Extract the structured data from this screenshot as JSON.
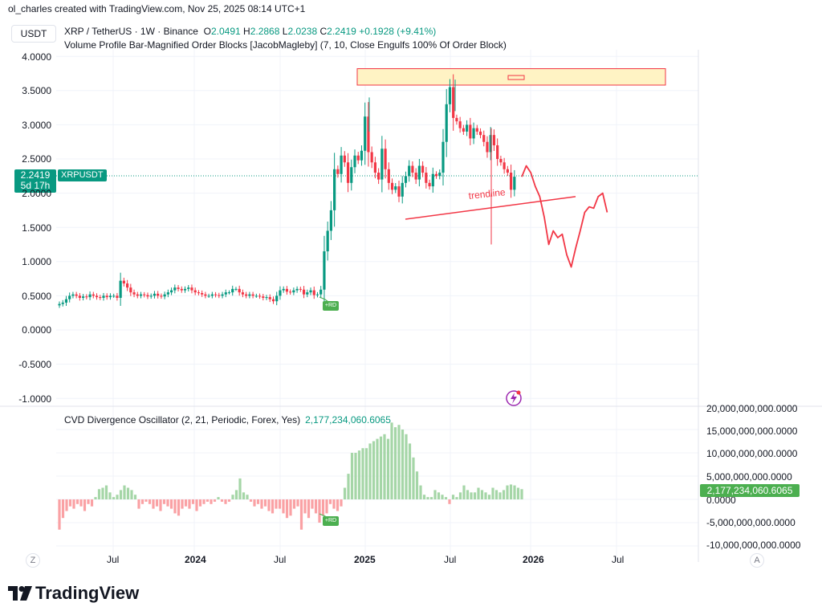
{
  "header": {
    "credit": "ol_charles created with TradingView.com, Nov 25, 2025 08:14 UTC+1"
  },
  "symbol_box": "USDT",
  "title": {
    "name": "XRP / TetherUS · 1W · Binance",
    "o_label": "O",
    "o": "2.0491",
    "h_label": "H",
    "h": "2.2868",
    "l_label": "L",
    "l": "2.0238",
    "c_label": "C",
    "c": "2.2419",
    "change": "+0.1928 (+9.41%)"
  },
  "indicator1": "Volume Profile Bar-Magnified Order Blocks [JacobMagleby] (7, 10, Close Engulfs 100% Of Order Block)",
  "indicator2": {
    "name": "CVD Divergence Oscillator (2, 21, Periodic, Forex, Yes)",
    "value": "2,177,234,060.6065"
  },
  "price_label": {
    "price": "2.2419",
    "countdown": "5d 17h",
    "symbol": "XRPUSDT"
  },
  "cvd_label": "2,177,234,060.6065",
  "rd_tag": "+RD",
  "annotation": "trendline",
  "x_ticks": [
    {
      "label": "Jul",
      "bold": false
    },
    {
      "label": "2024",
      "bold": true
    },
    {
      "label": "Jul",
      "bold": false
    },
    {
      "label": "2025",
      "bold": true
    },
    {
      "label": "Jul",
      "bold": false
    },
    {
      "label": "2026",
      "bold": true
    },
    {
      "label": "Jul",
      "bold": false
    }
  ],
  "corner_left": "Z",
  "corner_right": "A",
  "logo_text": "TradingView",
  "colors": {
    "up": "#089981",
    "down": "#f23645",
    "cvd_pos": "#a5d6a7",
    "cvd_neg": "#faa1a4",
    "order_block": "#fff3c4"
  },
  "chart_data": [
    {
      "type": "candlestick",
      "title": "XRP / TetherUS · 1W · Binance",
      "y_ticks": [
        "4.0000",
        "3.5000",
        "3.0000",
        "2.5000",
        "2.0000",
        "1.5000",
        "1.0000",
        "0.5000",
        "0.0000",
        "-0.5000",
        "-1.0000"
      ],
      "ylim": [
        -1.0,
        4.0
      ],
      "x_labels": [
        "Jul",
        "2024",
        "Jul",
        "2025",
        "Jul",
        "2026",
        "Jul"
      ],
      "weekly_close": [
        0.38,
        0.4,
        0.45,
        0.5,
        0.52,
        0.5,
        0.47,
        0.49,
        0.48,
        0.52,
        0.5,
        0.48,
        0.47,
        0.5,
        0.48,
        0.5,
        0.5,
        0.47,
        0.72,
        0.68,
        0.62,
        0.55,
        0.52,
        0.5,
        0.52,
        0.51,
        0.49,
        0.5,
        0.53,
        0.5,
        0.49,
        0.52,
        0.55,
        0.58,
        0.62,
        0.6,
        0.58,
        0.6,
        0.62,
        0.58,
        0.55,
        0.54,
        0.52,
        0.5,
        0.5,
        0.52,
        0.51,
        0.5,
        0.52,
        0.55,
        0.55,
        0.6,
        0.6,
        0.55,
        0.52,
        0.5,
        0.52,
        0.5,
        0.5,
        0.49,
        0.47,
        0.48,
        0.45,
        0.42,
        0.5,
        0.58,
        0.6,
        0.56,
        0.55,
        0.58,
        0.6,
        0.59,
        0.52,
        0.55,
        0.58,
        0.51,
        0.52,
        0.59,
        1.15,
        1.45,
        1.75,
        2.35,
        2.28,
        2.55,
        2.45,
        2.15,
        2.38,
        2.55,
        2.48,
        2.62,
        3.12,
        2.6,
        2.45,
        2.3,
        2.2,
        2.65,
        2.35,
        2.15,
        2.05,
        2.1,
        1.95,
        2.15,
        2.25,
        2.4,
        2.3,
        2.2,
        2.4,
        2.3,
        2.15,
        2.1,
        2.28,
        2.25,
        2.3,
        2.75,
        3.3,
        3.55,
        3.1,
        3.05,
        2.95,
        2.9,
        3.0,
        2.8,
        2.95,
        2.9,
        2.85,
        2.75,
        2.6,
        2.85,
        2.7,
        2.5,
        2.45,
        2.35,
        2.3,
        2.05,
        2.24
      ],
      "projection_path_prices": [
        2.24,
        2.4,
        2.3,
        2.1,
        1.95,
        1.65,
        1.25,
        1.45,
        1.35,
        1.4,
        1.1,
        0.92,
        1.2,
        1.45,
        1.72,
        1.8,
        1.78,
        1.95,
        2.0,
        1.72
      ],
      "trendline": {
        "label": "trendline",
        "from": {
          "date": "2025-04",
          "price": 1.62
        },
        "to": {
          "date": "2026-05",
          "price": 1.95
        }
      },
      "order_block": {
        "top": 3.82,
        "bottom": 3.58
      },
      "last_price": 2.2419,
      "symbol_label": "XRPUSDT",
      "countdown": "5d 17h"
    },
    {
      "type": "bar",
      "title": "CVD Divergence Oscillator (2, 21, Periodic, Forex, Yes)",
      "y_ticks": [
        "20,000,000,000.0000",
        "15,000,000,000.0000",
        "10,000,000,000.0000",
        "5,000,000,000.0000",
        "0.0000",
        "-5,000,000,000.0000",
        "-10,000,000,000.0000"
      ],
      "ylim": [
        -10000000000,
        20000000000
      ],
      "values": [
        -6.5,
        -4,
        -2.5,
        -1.5,
        -2,
        -1,
        -1.5,
        -2.5,
        -1,
        -1.5,
        0.5,
        2.2,
        2.5,
        3,
        1.5,
        0.5,
        1,
        2,
        3,
        2.5,
        2,
        1,
        -2,
        -1,
        -0.5,
        -1,
        -2,
        -1.5,
        -2.5,
        -1,
        -1.5,
        -2,
        -3,
        -3.5,
        -2,
        -1.5,
        -2,
        -1,
        -2.5,
        -1.5,
        -1,
        -0.5,
        -1,
        -0.5,
        0.5,
        -0.5,
        -1,
        -0.5,
        1,
        2,
        4.5,
        1.5,
        1,
        -0.5,
        -1.5,
        -1,
        -2,
        -1.5,
        -2.5,
        -3,
        -2,
        -2,
        -3,
        -4,
        -3.5,
        -2,
        -1.5,
        -6.5,
        -3,
        -4,
        -2,
        -3,
        -5,
        -3.5,
        -3,
        -1,
        -2,
        -2.5,
        -1.5,
        2.5,
        5.5,
        10,
        10,
        10.5,
        11,
        11,
        12,
        12.5,
        13,
        13.5,
        14,
        13,
        16.5,
        15.5,
        16,
        15,
        14,
        12,
        9,
        6,
        3,
        1,
        0.5,
        0.5,
        2,
        1.5,
        1,
        0.5,
        -1,
        1,
        0.5,
        1.5,
        3,
        2,
        1.5,
        1.5,
        2.5,
        2,
        1.5,
        1,
        2.5,
        2,
        1.5,
        2,
        3,
        3.2,
        3,
        2.5,
        2.2
      ],
      "value_scale": "billions",
      "last_value": "2,177,234,060.6065",
      "tag": "+RD"
    }
  ]
}
